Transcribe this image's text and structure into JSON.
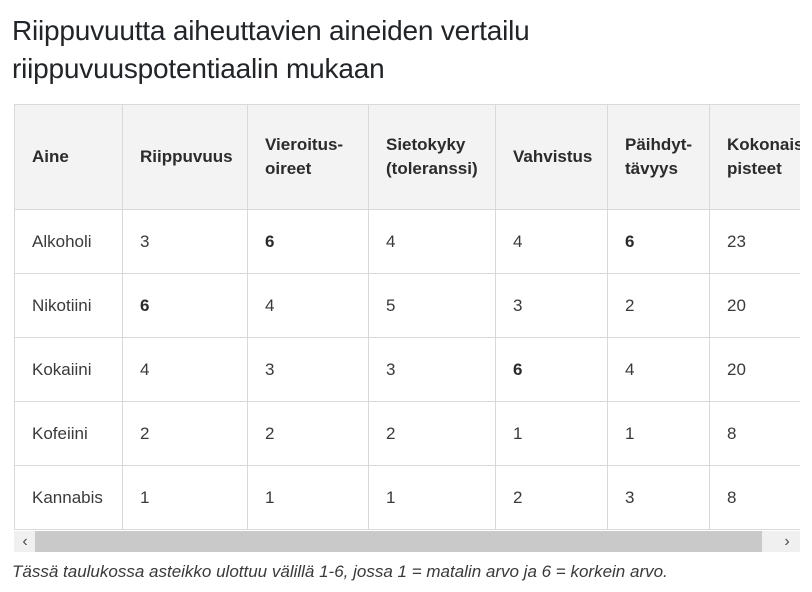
{
  "page": {
    "title": "Riippuvuutta aiheuttavien aineiden vertailu riippuvuuspotentiaalin mukaan",
    "footnote": "Tässä taulukossa asteikko ulottuu välillä 1-6, jossa 1 = matalin arvo ja 6 = korkein arvo."
  },
  "chart_data": {
    "type": "table",
    "title": "Riippuvuutta aiheuttavien aineiden vertailu riippuvuuspotentiaalin mukaan",
    "columns": [
      "Aine",
      "Riippuvuus",
      "Vieroitus-oireet",
      "Sietokyky (toleranssi)",
      "Vahvistus",
      "Päihdyt-tävyys",
      "Kokonais-pisteet"
    ],
    "rows": [
      {
        "name": "Alkoholi",
        "cells": [
          {
            "v": "3",
            "b": false
          },
          {
            "v": "6",
            "b": true
          },
          {
            "v": "4",
            "b": false
          },
          {
            "v": "4",
            "b": false
          },
          {
            "v": "6",
            "b": true
          },
          {
            "v": "23",
            "b": false
          }
        ]
      },
      {
        "name": "Nikotiini",
        "cells": [
          {
            "v": "6",
            "b": true
          },
          {
            "v": "4",
            "b": false
          },
          {
            "v": "5",
            "b": false
          },
          {
            "v": "3",
            "b": false
          },
          {
            "v": "2",
            "b": false
          },
          {
            "v": "20",
            "b": false
          }
        ]
      },
      {
        "name": "Kokaiini",
        "cells": [
          {
            "v": "4",
            "b": false
          },
          {
            "v": "3",
            "b": false
          },
          {
            "v": "3",
            "b": false
          },
          {
            "v": "6",
            "b": true
          },
          {
            "v": "4",
            "b": false
          },
          {
            "v": "20",
            "b": false
          }
        ]
      },
      {
        "name": "Kofeiini",
        "cells": [
          {
            "v": "2",
            "b": false
          },
          {
            "v": "2",
            "b": false
          },
          {
            "v": "2",
            "b": false
          },
          {
            "v": "1",
            "b": false
          },
          {
            "v": "1",
            "b": false
          },
          {
            "v": "8",
            "b": false
          }
        ]
      },
      {
        "name": "Kannabis",
        "cells": [
          {
            "v": "1",
            "b": false
          },
          {
            "v": "1",
            "b": false
          },
          {
            "v": "1",
            "b": false
          },
          {
            "v": "2",
            "b": false
          },
          {
            "v": "3",
            "b": false
          },
          {
            "v": "8",
            "b": false
          }
        ]
      }
    ],
    "scale_note": "1-6, 1 = matalin arvo, 6 = korkein arvo"
  },
  "scrollbar": {
    "left_arrow": "‹",
    "right_arrow": "›"
  }
}
